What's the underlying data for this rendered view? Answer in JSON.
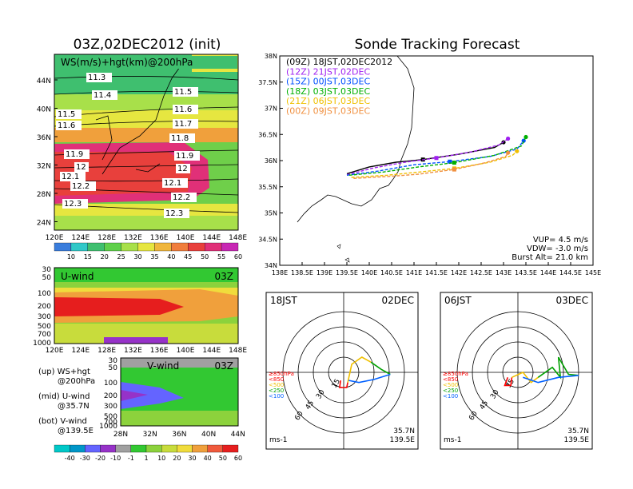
{
  "colors": {
    "ws": [
      "#3a7ddc",
      "#30c8c8",
      "#3fbf6f",
      "#5fd04a",
      "#a8e04a",
      "#e6e640",
      "#f0b63c",
      "#f07d3c",
      "#e8403c",
      "#e03078",
      "#c828b4"
    ],
    "uwind": [
      "#00c8c8",
      "#0096c8",
      "#6464ff",
      "#9632c8",
      "#a0a0a0",
      "#32c832",
      "#8cd23c",
      "#c8dc3c",
      "#f0dc3c",
      "#f0a03c",
      "#f05a3c",
      "#e61e1e"
    ],
    "tracks": {
      "09Z": "#000000",
      "12Z": "#a020f0",
      "15Z": "#0050ff",
      "18Z": "#00b000",
      "21Z": "#f0c000",
      "00Z": "#f09040"
    },
    "hodo": {
      "850": "#ff0000",
      "500": "#f0c000",
      "250": "#00a000",
      "100": "#0060ff",
      "top": "#00c8c8"
    }
  },
  "left": {
    "title": "03Z,02DEC2012 (init)",
    "ws_panel": {
      "label": "WS(m/s)+hgt(km)@200hPa",
      "lat_ticks": [
        "44N",
        "40N",
        "36N",
        "32N",
        "28N",
        "24N"
      ],
      "lon_ticks": [
        "120E",
        "124E",
        "128E",
        "132E",
        "136E",
        "140E",
        "144E",
        "148E"
      ],
      "contour_labels_left": [
        "11.3",
        "11.4",
        "11.5",
        "11.6",
        "11.9",
        "12",
        "12.1",
        "12.2",
        "12.3"
      ],
      "contour_labels_right": [
        "11.5",
        "11.6",
        "11.7",
        "11.8",
        "11.9",
        "12",
        "12.1",
        "12.2",
        "12.3"
      ],
      "colorbar": [
        "10",
        "15",
        "20",
        "25",
        "30",
        "35",
        "40",
        "45",
        "50",
        "55",
        "60"
      ]
    },
    "u_panel": {
      "label": "U-wind",
      "time": "03Z",
      "p_ticks": [
        "30",
        "50",
        "100",
        "200",
        "300",
        "500",
        "700",
        "1000"
      ],
      "lon_ticks": [
        "120E",
        "124E",
        "128E",
        "132E",
        "136E",
        "140E",
        "144E",
        "148E"
      ]
    },
    "v_panel": {
      "label": "V-wind",
      "time": "03Z",
      "p_ticks": [
        "30",
        "50",
        "100",
        "200",
        "300",
        "500",
        "700",
        "1000"
      ],
      "lat_ticks": [
        "28N",
        "32N",
        "36N",
        "40N",
        "44N"
      ]
    },
    "notes": [
      {
        "key": "(up)",
        "text": "WS+hgt",
        "sub": "@200hPa"
      },
      {
        "key": "(mid)",
        "text": "U-wind",
        "sub": "@35.7N"
      },
      {
        "key": "(bot)",
        "text": "V-wind",
        "sub": "@139.5E"
      }
    ],
    "colorbar2": [
      "-40",
      "-30",
      "-20",
      "-10",
      "-1",
      "1",
      "10",
      "20",
      "30",
      "40",
      "50",
      "60"
    ]
  },
  "chart_data": {
    "type": "line",
    "title": "Sonde Tracking Forecast",
    "xlim": [
      138,
      145
    ],
    "ylim": [
      34,
      38
    ],
    "x_ticks": [
      "138E",
      "138.5E",
      "139E",
      "139.5E",
      "140E",
      "140.5E",
      "141E",
      "141.5E",
      "142E",
      "142.5E",
      "143E",
      "143.5E",
      "144E",
      "144.5E",
      "145E"
    ],
    "y_ticks": [
      "38N",
      "37.5N",
      "37N",
      "36.5N",
      "36N",
      "35.5N",
      "35N",
      "34.5N",
      "34N"
    ],
    "series": [
      {
        "name": "(09Z) 18JST,02DEC2012",
        "key": "09Z",
        "points": [
          [
            139.5,
            35.75
          ],
          [
            140.0,
            35.88
          ],
          [
            140.6,
            35.97
          ],
          [
            141.2,
            36.02
          ],
          [
            142.0,
            36.12
          ],
          [
            142.8,
            36.25
          ],
          [
            143.0,
            36.35
          ]
        ]
      },
      {
        "name": "(12Z) 21JST,02DEC",
        "key": "12Z",
        "points": [
          [
            139.5,
            35.73
          ],
          [
            140.1,
            35.86
          ],
          [
            140.8,
            35.97
          ],
          [
            141.5,
            36.05
          ],
          [
            142.3,
            36.17
          ],
          [
            142.9,
            36.3
          ],
          [
            143.1,
            36.42
          ]
        ]
      },
      {
        "name": "(15Z) 00JST,03DEC",
        "key": "15Z",
        "points": [
          [
            139.5,
            35.72
          ],
          [
            140.2,
            35.8
          ],
          [
            141.0,
            35.92
          ],
          [
            141.8,
            35.98
          ],
          [
            142.7,
            36.08
          ],
          [
            143.3,
            36.22
          ],
          [
            143.45,
            36.38
          ]
        ]
      },
      {
        "name": "(18Z) 03JST,03DEC",
        "key": "18Z",
        "points": [
          [
            139.55,
            35.72
          ],
          [
            140.3,
            35.78
          ],
          [
            141.1,
            35.88
          ],
          [
            141.9,
            35.96
          ],
          [
            142.8,
            36.1
          ],
          [
            143.4,
            36.28
          ],
          [
            143.5,
            36.45
          ]
        ]
      },
      {
        "name": "(21Z) 06JST,03DEC",
        "key": "21Z",
        "points": [
          [
            139.6,
            35.68
          ],
          [
            140.4,
            35.72
          ],
          [
            141.1,
            35.78
          ],
          [
            141.9,
            35.85
          ],
          [
            142.7,
            35.97
          ],
          [
            143.2,
            36.1
          ],
          [
            143.3,
            36.18
          ]
        ]
      },
      {
        "name": "(00Z) 09JST,03DEC",
        "key": "00Z",
        "points": [
          [
            139.65,
            35.66
          ],
          [
            140.5,
            35.7
          ],
          [
            141.1,
            35.74
          ],
          [
            141.9,
            35.83
          ],
          [
            142.6,
            35.96
          ],
          [
            143.05,
            36.08
          ],
          [
            143.1,
            36.15
          ]
        ]
      }
    ],
    "annotation": [
      "VUP= 4.5 m/s",
      "VDW= -3.0 m/s",
      "Burst Alt= 21.0 km"
    ]
  },
  "hodographs": [
    {
      "time": "18JST",
      "date": "02DEC",
      "rings": [
        "15",
        "30",
        "45",
        "60"
      ],
      "legend": [
        "≥850hPa",
        "<850",
        "<500",
        "<250",
        "<100"
      ],
      "loc": [
        "35.7N",
        "139.5E"
      ],
      "units": "ms-1",
      "segments": [
        {
          "level": "850",
          "points": [
            [
              -3,
              -8
            ],
            [
              -4,
              -15
            ],
            [
              3,
              -15
            ],
            [
              4,
              -10
            ]
          ]
        },
        {
          "level": "500",
          "points": [
            [
              4,
              -10
            ],
            [
              8,
              8
            ],
            [
              18,
              15
            ],
            [
              27,
              10
            ]
          ]
        },
        {
          "level": "250",
          "points": [
            [
              27,
              10
            ],
            [
              37,
              3
            ],
            [
              46,
              -2
            ]
          ]
        },
        {
          "level": "100",
          "points": [
            [
              46,
              -2
            ],
            [
              30,
              -7
            ],
            [
              15,
              -10
            ],
            [
              5,
              -8
            ]
          ]
        }
      ]
    },
    {
      "time": "06JST",
      "date": "03DEC",
      "rings": [
        "15",
        "30",
        "45",
        "60"
      ],
      "legend": [
        "≥850hPa",
        "<850",
        "<500",
        "<250",
        "<100"
      ],
      "loc": [
        "35.7N",
        "139.5E"
      ],
      "units": "ms-1",
      "segments": [
        {
          "level": "850",
          "points": [
            [
              -10,
              -5
            ],
            [
              -13,
              -13
            ],
            [
              -7,
              -13
            ],
            [
              -6,
              -5
            ]
          ]
        },
        {
          "level": "500",
          "points": [
            [
              -6,
              -5
            ],
            [
              5,
              0
            ],
            [
              13,
              -10
            ],
            [
              20,
              -5
            ]
          ]
        },
        {
          "level": "250",
          "points": [
            [
              20,
              -5
            ],
            [
              34,
              5
            ],
            [
              42,
              -5
            ],
            [
              40,
              15
            ],
            [
              50,
              -2
            ],
            [
              60,
              -3
            ]
          ]
        },
        {
          "level": "100",
          "points": [
            [
              60,
              -3
            ],
            [
              40,
              -5
            ],
            [
              20,
              -10
            ],
            [
              5,
              -5
            ]
          ]
        }
      ]
    }
  ]
}
